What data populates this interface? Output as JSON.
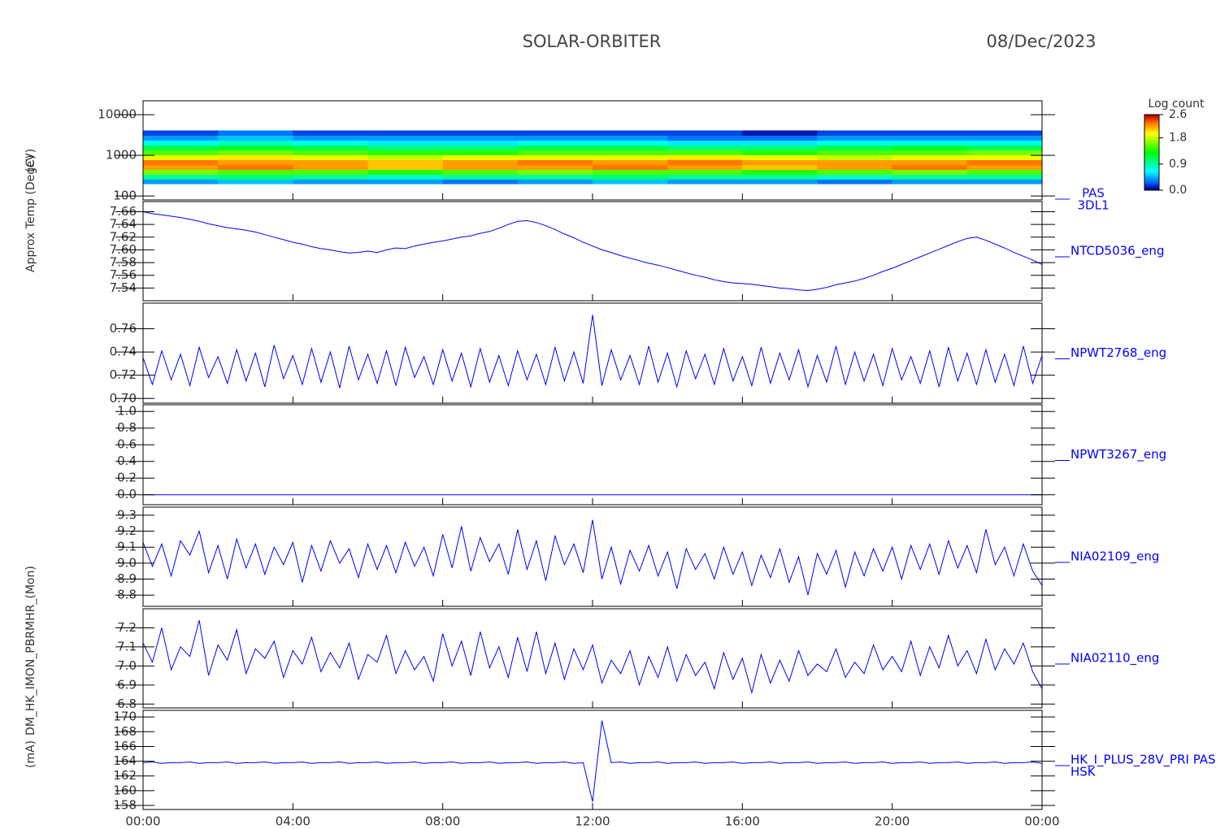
{
  "chart_data": {
    "type": "line",
    "title": "SOLAR-ORBITER",
    "subtitle": "08/Dec/2023",
    "xlim": [
      0,
      24
    ],
    "xticks": [
      {
        "value": 0,
        "label": "00:00"
      },
      {
        "value": 4,
        "label": "04:00"
      },
      {
        "value": 8,
        "label": "08:00"
      },
      {
        "value": 12,
        "label": "12:00"
      },
      {
        "value": 16,
        "label": "16:00"
      },
      {
        "value": 20,
        "label": "20:00"
      },
      {
        "value": 24,
        "label": "00:00"
      }
    ],
    "ylabels": [
      "(eV)",
      "Approx Temp (DegC)",
      "DM_HK_IMON_PBRMHR_(Mon)",
      "(mA)"
    ],
    "x": [
      0,
      0.25,
      0.5,
      0.75,
      1,
      1.25,
      1.5,
      1.75,
      2,
      2.25,
      2.5,
      2.75,
      3,
      3.25,
      3.5,
      3.75,
      4,
      4.25,
      4.5,
      4.75,
      5,
      5.25,
      5.5,
      5.75,
      6,
      6.25,
      6.5,
      6.75,
      7,
      7.25,
      7.5,
      7.75,
      8,
      8.25,
      8.5,
      8.75,
      9,
      9.25,
      9.5,
      9.75,
      10,
      10.25,
      10.5,
      10.75,
      11,
      11.25,
      11.5,
      11.75,
      12,
      12.25,
      12.5,
      12.75,
      13,
      13.25,
      13.5,
      13.75,
      14,
      14.25,
      14.5,
      14.75,
      15,
      15.25,
      15.5,
      15.75,
      16,
      16.25,
      16.5,
      16.75,
      17,
      17.25,
      17.5,
      17.75,
      18,
      18.25,
      18.5,
      18.75,
      19,
      19.25,
      19.5,
      19.75,
      20,
      20.25,
      20.5,
      20.75,
      21,
      21.25,
      21.5,
      21.75,
      22,
      22.25,
      22.5,
      22.75,
      23,
      23.25,
      23.5,
      23.75,
      24
    ],
    "panels": [
      {
        "type": "heatmap",
        "label": [
          "PAS",
          "3DL1"
        ],
        "log": true,
        "ylim": [
          80,
          22000
        ],
        "yticks": [
          100,
          1000,
          10000
        ],
        "x_bins": [
          0,
          2,
          4,
          6,
          8,
          10,
          12,
          14,
          16,
          18,
          20,
          22,
          24
        ],
        "y_bins": [
          200,
          260,
          340,
          450,
          590,
          780,
          1030,
          1350,
          1780,
          2350,
          3100,
          4100
        ],
        "z": [
          [
            0.4,
            0.5,
            0.4,
            0.4,
            0.3,
            0.4,
            0.5,
            0.4,
            0.4,
            0.3,
            0.4,
            0.4
          ],
          [
            0.9,
            1.0,
            0.9,
            0.8,
            0.9,
            0.9,
            1.0,
            0.9,
            0.9,
            0.8,
            0.9,
            0.9
          ],
          [
            1.6,
            1.5,
            1.5,
            1.4,
            1.5,
            1.6,
            1.5,
            1.5,
            1.4,
            1.5,
            1.6,
            1.5
          ],
          [
            2.2,
            2.3,
            2.2,
            2.1,
            2.2,
            2.2,
            2.3,
            2.2,
            2.1,
            2.2,
            2.3,
            2.2
          ],
          [
            2.3,
            2.2,
            2.2,
            2.1,
            2.2,
            2.3,
            2.2,
            2.3,
            2.2,
            2.2,
            2.2,
            2.3
          ],
          [
            1.9,
            2.0,
            1.9,
            1.8,
            1.9,
            1.9,
            1.9,
            2.0,
            1.9,
            1.8,
            1.9,
            1.9
          ],
          [
            1.5,
            1.6,
            1.5,
            1.4,
            1.4,
            1.5,
            1.5,
            1.5,
            1.4,
            1.5,
            1.5,
            1.6
          ],
          [
            1.1,
            1.2,
            1.1,
            1.0,
            1.0,
            1.1,
            1.1,
            1.0,
            1.0,
            1.1,
            1.2,
            1.1
          ],
          [
            0.7,
            0.8,
            0.7,
            0.6,
            0.6,
            0.7,
            0.7,
            0.6,
            0.6,
            0.7,
            0.7,
            0.7
          ],
          [
            0.4,
            0.5,
            0.4,
            0.4,
            0.4,
            0.4,
            0.4,
            0.3,
            0.3,
            0.4,
            0.4,
            0.4
          ],
          [
            0.2,
            0.3,
            0.2,
            0.2,
            0.2,
            0.2,
            0.2,
            0.2,
            0.1,
            0.2,
            0.2,
            0.2
          ]
        ],
        "zlim": [
          0,
          2.6
        ],
        "zticks": [
          {
            "value": 0,
            "label": "0.0"
          },
          0.9,
          1.8,
          2.6
        ],
        "colorbar_title": "Log count",
        "color": "#1010e0"
      },
      {
        "type": "line",
        "label": [
          "NTCD5036_eng"
        ],
        "color": "#0000ff",
        "ylim": [
          7.52,
          7.676
        ],
        "yticks": [
          7.54,
          7.56,
          7.58,
          {
            "value": 7.6,
            "label": "7.60"
          },
          7.62,
          7.64,
          7.66
        ],
        "values": [
          7.66,
          7.657,
          7.655,
          7.653,
          7.651,
          7.648,
          7.645,
          7.641,
          7.638,
          7.635,
          7.633,
          7.631,
          7.628,
          7.624,
          7.62,
          7.616,
          7.612,
          7.609,
          7.605,
          7.602,
          7.6,
          7.597,
          7.595,
          7.596,
          7.598,
          7.596,
          7.6,
          7.603,
          7.602,
          7.606,
          7.609,
          7.612,
          7.614,
          7.617,
          7.62,
          7.622,
          7.626,
          7.629,
          7.634,
          7.64,
          7.645,
          7.646,
          7.643,
          7.638,
          7.632,
          7.625,
          7.619,
          7.612,
          7.606,
          7.6,
          7.596,
          7.591,
          7.587,
          7.583,
          7.579,
          7.576,
          7.572,
          7.568,
          7.564,
          7.56,
          7.557,
          7.553,
          7.55,
          7.548,
          7.547,
          7.546,
          7.544,
          7.542,
          7.54,
          7.539,
          7.537,
          7.536,
          7.538,
          7.541,
          7.545,
          7.548,
          7.551,
          7.555,
          7.56,
          7.566,
          7.571,
          7.577,
          7.583,
          7.589,
          7.595,
          7.601,
          7.607,
          7.613,
          7.618,
          7.62,
          7.615,
          7.609,
          7.603,
          7.596,
          7.59,
          7.584,
          7.577
        ]
      },
      {
        "type": "line",
        "label": [
          "NPWT2768_eng"
        ],
        "color": "#0000ff",
        "ylim": [
          0.696,
          0.782
        ],
        "yticks": [
          {
            "value": 0.7,
            "label": "0.70"
          },
          0.72,
          0.74,
          0.76
        ],
        "values": [
          0.735,
          0.712,
          0.741,
          0.716,
          0.738,
          0.711,
          0.744,
          0.718,
          0.736,
          0.713,
          0.742,
          0.715,
          0.739,
          0.71,
          0.746,
          0.717,
          0.737,
          0.712,
          0.743,
          0.714,
          0.74,
          0.709,
          0.745,
          0.716,
          0.738,
          0.713,
          0.741,
          0.711,
          0.744,
          0.718,
          0.736,
          0.712,
          0.742,
          0.715,
          0.739,
          0.71,
          0.743,
          0.714,
          0.737,
          0.711,
          0.741,
          0.716,
          0.738,
          0.712,
          0.744,
          0.715,
          0.74,
          0.713,
          0.772,
          0.711,
          0.742,
          0.716,
          0.737,
          0.712,
          0.745,
          0.714,
          0.739,
          0.71,
          0.741,
          0.717,
          0.738,
          0.712,
          0.743,
          0.715,
          0.736,
          0.711,
          0.744,
          0.713,
          0.739,
          0.716,
          0.742,
          0.71,
          0.737,
          0.714,
          0.745,
          0.712,
          0.74,
          0.715,
          0.738,
          0.711,
          0.743,
          0.716,
          0.736,
          0.713,
          0.741,
          0.71,
          0.744,
          0.715,
          0.739,
          0.712,
          0.742,
          0.714,
          0.738,
          0.711,
          0.745,
          0.713,
          0.737
        ]
      },
      {
        "type": "line",
        "label": [
          "NPWT3267_eng"
        ],
        "color": "#0000ff",
        "ylim": [
          -0.12,
          1.08
        ],
        "yticks": [
          {
            "value": 0,
            "label": "0.0"
          },
          0.2,
          0.4,
          0.6,
          0.8,
          {
            "value": 1,
            "label": "1.0"
          }
        ],
        "values": [
          0,
          0,
          0,
          0,
          0,
          0,
          0,
          0,
          0,
          0,
          0,
          0,
          0,
          0,
          0,
          0,
          0,
          0,
          0,
          0,
          0,
          0,
          0,
          0,
          0,
          0,
          0,
          0,
          0,
          0,
          0,
          0,
          0,
          0,
          0,
          0,
          0,
          0,
          0,
          0,
          0,
          0,
          0,
          0,
          0,
          0,
          0,
          0,
          0,
          0,
          0,
          0,
          0,
          0,
          0,
          0,
          0,
          0,
          0,
          0,
          0,
          0,
          0,
          0,
          0,
          0,
          0,
          0,
          0,
          0,
          0,
          0,
          0,
          0,
          0,
          0,
          0,
          0,
          0,
          0,
          0,
          0,
          0,
          0,
          0,
          0,
          0,
          0,
          0,
          0,
          0,
          0,
          0,
          0,
          0,
          0,
          0
        ]
      },
      {
        "type": "line",
        "label": [
          "NIA02109_eng"
        ],
        "color": "#0000ff",
        "ylim": [
          8.73,
          9.35
        ],
        "yticks": [
          8.8,
          8.9,
          {
            "value": 9,
            "label": "9.0"
          },
          9.1,
          9.2,
          9.3
        ],
        "values": [
          9.13,
          8.98,
          9.12,
          8.92,
          9.14,
          9.05,
          9.2,
          8.94,
          9.11,
          8.9,
          9.15,
          8.97,
          9.12,
          8.93,
          9.1,
          8.99,
          9.13,
          8.88,
          9.11,
          8.95,
          9.14,
          9.0,
          9.09,
          8.91,
          9.12,
          8.96,
          9.11,
          8.94,
          9.13,
          8.98,
          9.1,
          8.92,
          9.18,
          8.97,
          9.23,
          8.95,
          9.16,
          9.01,
          9.12,
          8.93,
          9.21,
          8.96,
          9.14,
          8.89,
          9.17,
          8.99,
          9.12,
          8.94,
          9.27,
          8.9,
          9.1,
          8.87,
          9.08,
          8.95,
          9.11,
          8.92,
          9.07,
          8.84,
          9.09,
          8.96,
          9.06,
          8.9,
          9.1,
          8.93,
          9.07,
          8.86,
          9.05,
          8.91,
          9.09,
          8.88,
          9.04,
          8.8,
          9.06,
          8.93,
          9.08,
          8.85,
          9.07,
          8.92,
          9.09,
          8.95,
          9.1,
          8.9,
          9.11,
          8.96,
          9.12,
          8.93,
          9.14,
          8.97,
          9.11,
          8.94,
          9.21,
          8.99,
          9.1,
          8.92,
          9.12,
          8.95,
          8.86
        ]
      },
      {
        "type": "line",
        "label": [
          "NIA02110_eng"
        ],
        "color": "#0000ff",
        "ylim": [
          6.78,
          7.3
        ],
        "yticks": [
          6.8,
          6.9,
          {
            "value": 7,
            "label": "7.0"
          },
          7.1,
          7.2
        ],
        "values": [
          7.12,
          7.02,
          7.2,
          6.98,
          7.1,
          7.05,
          7.24,
          6.95,
          7.11,
          7.03,
          7.19,
          6.96,
          7.09,
          7.04,
          7.13,
          6.94,
          7.08,
          7.01,
          7.15,
          6.97,
          7.07,
          6.99,
          7.12,
          6.93,
          7.06,
          7.02,
          7.16,
          6.96,
          7.08,
          6.98,
          7.05,
          6.92,
          7.17,
          7.0,
          7.13,
          6.95,
          7.18,
          6.99,
          7.1,
          6.94,
          7.15,
          6.97,
          7.18,
          6.96,
          7.12,
          6.93,
          7.09,
          6.98,
          7.11,
          6.91,
          7.03,
          6.96,
          7.08,
          6.9,
          7.05,
          6.94,
          7.1,
          6.92,
          7.06,
          6.95,
          7.02,
          6.88,
          7.07,
          6.93,
          7.04,
          6.86,
          7.06,
          6.91,
          7.03,
          6.92,
          7.08,
          6.95,
          7.01,
          6.97,
          7.09,
          6.94,
          7.02,
          6.96,
          7.11,
          6.98,
          7.05,
          6.97,
          7.13,
          6.95,
          7.1,
          6.99,
          7.16,
          7.0,
          7.08,
          6.96,
          7.14,
          6.98,
          7.09,
          7.01,
          7.12,
          6.97,
          6.88
        ]
      },
      {
        "type": "line",
        "label": [
          "HK_I_PLUS_28V_PRI PAS",
          "HSK"
        ],
        "color": "#0000ff",
        "ylim": [
          157.45,
          170.9
        ],
        "yticks": [
          158,
          160,
          162,
          164,
          166,
          168,
          170
        ],
        "values": [
          163.8,
          163.9,
          163.7,
          163.8,
          163.8,
          163.9,
          163.7,
          163.8,
          163.8,
          163.9,
          163.7,
          163.8,
          163.8,
          163.9,
          163.7,
          163.8,
          163.8,
          163.9,
          163.7,
          163.8,
          163.8,
          163.9,
          163.7,
          163.8,
          163.8,
          163.9,
          163.7,
          163.8,
          163.8,
          163.9,
          163.7,
          163.8,
          163.8,
          163.9,
          163.7,
          163.8,
          163.8,
          163.9,
          163.7,
          163.8,
          163.8,
          163.9,
          163.7,
          163.8,
          163.8,
          163.9,
          163.7,
          163.8,
          158.5,
          169.5,
          163.8,
          163.9,
          163.7,
          163.8,
          163.8,
          163.9,
          163.7,
          163.8,
          163.8,
          163.9,
          163.7,
          163.8,
          163.8,
          163.9,
          163.7,
          163.8,
          163.8,
          163.9,
          163.7,
          163.8,
          163.8,
          163.9,
          163.7,
          163.8,
          163.8,
          163.9,
          163.7,
          163.8,
          163.8,
          163.9,
          163.7,
          163.8,
          163.8,
          163.9,
          163.7,
          163.8,
          163.8,
          163.9,
          163.7,
          163.8,
          163.8,
          163.9,
          163.7,
          163.8,
          163.8,
          163.9,
          163.7
        ]
      }
    ]
  }
}
